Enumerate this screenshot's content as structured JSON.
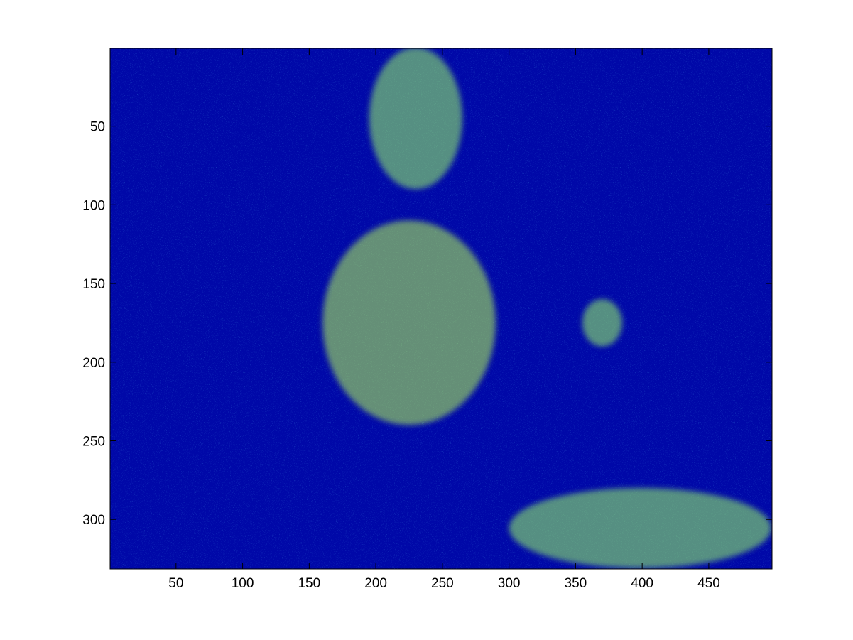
{
  "chart_data": {
    "type": "heatmap",
    "title": "",
    "xlabel": "",
    "ylabel": "",
    "colormap": "jet",
    "image_width": 497,
    "image_height": 331,
    "xlim": [
      0.5,
      497.5
    ],
    "ylim": [
      0.5,
      331.5
    ],
    "y_axis_direction": "reversed",
    "grid": false,
    "x_ticks": [
      50,
      100,
      150,
      200,
      250,
      300,
      350,
      400,
      450
    ],
    "y_ticks": [
      50,
      100,
      150,
      200,
      250,
      300
    ],
    "x_tick_labels": [
      "50",
      "100",
      "150",
      "200",
      "250",
      "300",
      "350",
      "400",
      "450"
    ],
    "y_tick_labels": [
      "50",
      "100",
      "150",
      "200",
      "250",
      "300"
    ],
    "dominant_values": "mostly low (dark blue) with light-green/cyan highlight regions and sparse yellow/red edge pixels",
    "highlight_regions": [
      {
        "x": [
          195,
          265
        ],
        "y": [
          0,
          90
        ],
        "level": "light-green"
      },
      {
        "x": [
          160,
          290
        ],
        "y": [
          110,
          240
        ],
        "level": "light-green/yellow"
      },
      {
        "x": [
          300,
          497
        ],
        "y": [
          280,
          331
        ],
        "level": "light-green"
      },
      {
        "x": [
          355,
          385
        ],
        "y": [
          160,
          190
        ],
        "level": "light-green"
      }
    ]
  },
  "colors": {
    "background": "#ffffff",
    "axes_frame": "#000000",
    "jet_low": "#00008f",
    "jet_mid": "#80ff80",
    "jet_high": "#ff0000"
  }
}
